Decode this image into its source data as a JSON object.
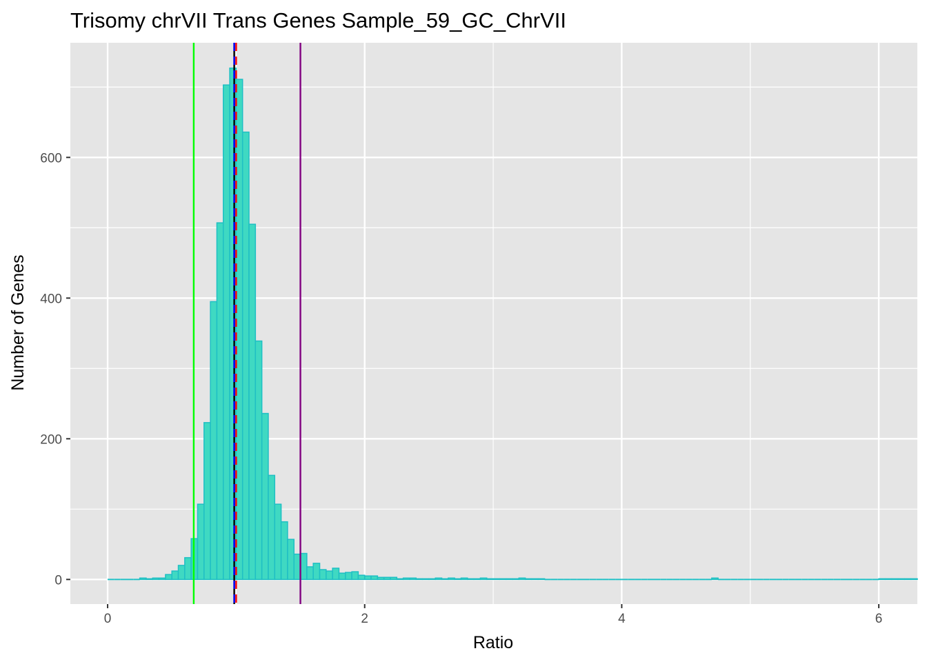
{
  "chart_data": {
    "type": "bar",
    "title": "Trisomy chrVII Trans Genes Sample_59_GC_ChrVII",
    "xlabel": "Ratio",
    "ylabel": "Number of Genes",
    "xlim": [
      -0.29,
      6.3
    ],
    "ylim": [
      -35,
      763
    ],
    "x_ticks": [
      0,
      2,
      4,
      6
    ],
    "y_ticks": [
      0,
      200,
      400,
      600
    ],
    "grid": true,
    "legend": "none",
    "bin_width": 0.05,
    "bins": [
      {
        "x": 0.25,
        "count": 2
      },
      {
        "x": 0.3,
        "count": 1
      },
      {
        "x": 0.35,
        "count": 2
      },
      {
        "x": 0.4,
        "count": 2
      },
      {
        "x": 0.45,
        "count": 7
      },
      {
        "x": 0.5,
        "count": 12
      },
      {
        "x": 0.55,
        "count": 20
      },
      {
        "x": 0.6,
        "count": 31
      },
      {
        "x": 0.65,
        "count": 58
      },
      {
        "x": 0.7,
        "count": 107
      },
      {
        "x": 0.75,
        "count": 223
      },
      {
        "x": 0.8,
        "count": 395
      },
      {
        "x": 0.85,
        "count": 507
      },
      {
        "x": 0.9,
        "count": 703
      },
      {
        "x": 0.95,
        "count": 727
      },
      {
        "x": 1.0,
        "count": 711
      },
      {
        "x": 1.05,
        "count": 636
      },
      {
        "x": 1.1,
        "count": 505
      },
      {
        "x": 1.15,
        "count": 339
      },
      {
        "x": 1.2,
        "count": 236
      },
      {
        "x": 1.25,
        "count": 148
      },
      {
        "x": 1.3,
        "count": 107
      },
      {
        "x": 1.35,
        "count": 82
      },
      {
        "x": 1.4,
        "count": 57
      },
      {
        "x": 1.45,
        "count": 36
      },
      {
        "x": 1.5,
        "count": 37
      },
      {
        "x": 1.55,
        "count": 18
      },
      {
        "x": 1.6,
        "count": 23
      },
      {
        "x": 1.65,
        "count": 14
      },
      {
        "x": 1.7,
        "count": 12
      },
      {
        "x": 1.75,
        "count": 16
      },
      {
        "x": 1.8,
        "count": 9
      },
      {
        "x": 1.85,
        "count": 10
      },
      {
        "x": 1.9,
        "count": 11
      },
      {
        "x": 1.95,
        "count": 6
      },
      {
        "x": 2.0,
        "count": 5
      },
      {
        "x": 2.05,
        "count": 5
      },
      {
        "x": 2.1,
        "count": 3
      },
      {
        "x": 2.15,
        "count": 3
      },
      {
        "x": 2.2,
        "count": 3
      },
      {
        "x": 2.25,
        "count": 1
      },
      {
        "x": 2.3,
        "count": 2
      },
      {
        "x": 2.35,
        "count": 2
      },
      {
        "x": 2.4,
        "count": 1
      },
      {
        "x": 2.45,
        "count": 1
      },
      {
        "x": 2.5,
        "count": 1
      },
      {
        "x": 2.55,
        "count": 2
      },
      {
        "x": 2.6,
        "count": 1
      },
      {
        "x": 2.65,
        "count": 2
      },
      {
        "x": 2.7,
        "count": 1
      },
      {
        "x": 2.75,
        "count": 2
      },
      {
        "x": 2.8,
        "count": 1
      },
      {
        "x": 2.85,
        "count": 1
      },
      {
        "x": 2.9,
        "count": 2
      },
      {
        "x": 2.95,
        "count": 1
      },
      {
        "x": 3.0,
        "count": 1
      },
      {
        "x": 3.05,
        "count": 1
      },
      {
        "x": 3.1,
        "count": 1
      },
      {
        "x": 3.15,
        "count": 1
      },
      {
        "x": 3.2,
        "count": 2
      },
      {
        "x": 3.25,
        "count": 1
      },
      {
        "x": 3.3,
        "count": 1
      },
      {
        "x": 3.35,
        "count": 1
      },
      {
        "x": 4.7,
        "count": 2
      },
      {
        "x": 6.0,
        "count": 1
      },
      {
        "x": 6.05,
        "count": 1
      },
      {
        "x": 6.1,
        "count": 1
      },
      {
        "x": 6.15,
        "count": 1
      },
      {
        "x": 6.2,
        "count": 1
      },
      {
        "x": 6.25,
        "count": 1
      }
    ],
    "baseline_start": 0,
    "reference_lines": [
      {
        "x": 0.67,
        "color": "#00ff00",
        "style": "solid"
      },
      {
        "x": 0.985,
        "color": "#000000",
        "style": "solid"
      },
      {
        "x": 0.985,
        "color": "#0000ff",
        "style": "dashed"
      },
      {
        "x": 1.0,
        "color": "#ff0000",
        "style": "dashed"
      },
      {
        "x": 1.5,
        "color": "#800080",
        "style": "solid"
      }
    ],
    "colors": {
      "bar_fill": "#3fd9c2",
      "bar_stroke": "#1fbfc4",
      "panel_bg": "#e5e5e5",
      "grid": "#ffffff"
    }
  }
}
